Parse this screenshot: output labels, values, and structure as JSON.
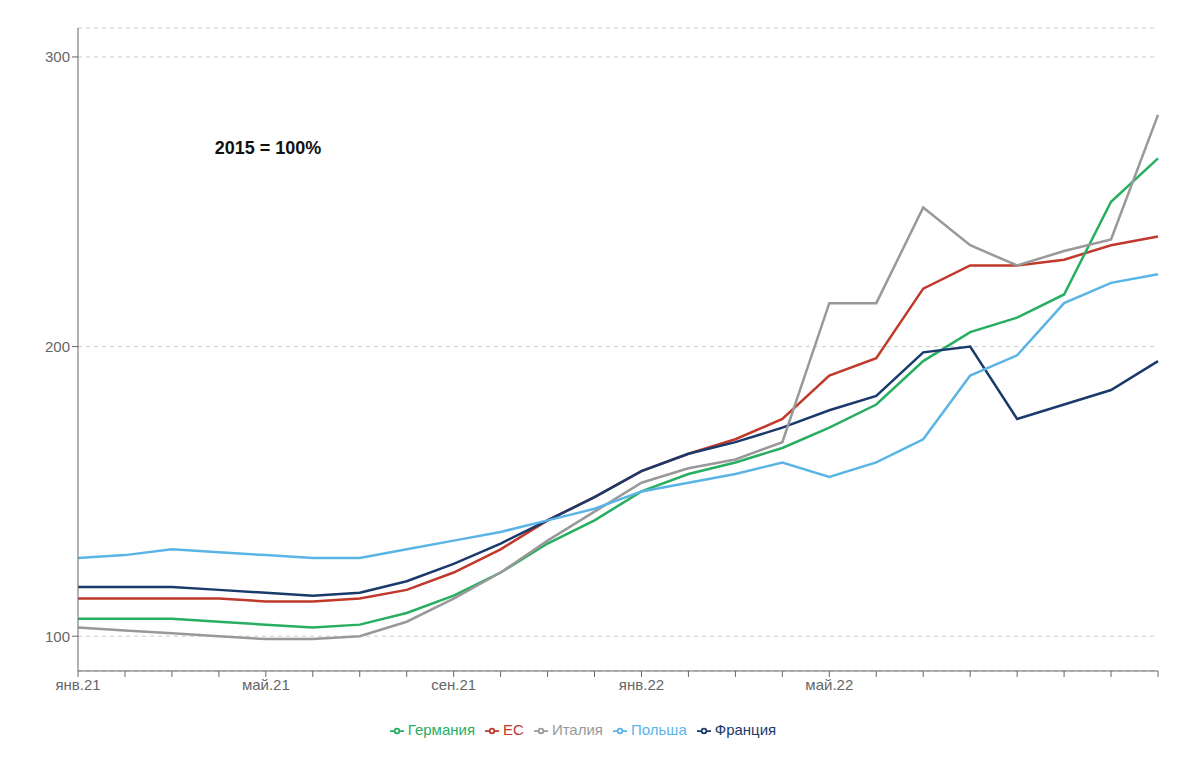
{
  "chart_data": {
    "type": "line",
    "annotations": [
      "2015 = 100%"
    ],
    "categories": [
      "янв.21",
      null,
      null,
      null,
      "май.21",
      null,
      null,
      null,
      "сен.21",
      null,
      null,
      null,
      "янв.22",
      null,
      null,
      null,
      "май.22",
      null,
      null,
      null,
      null,
      null,
      null,
      null
    ],
    "series": [
      {
        "name": "ЕС",
        "color": "#c0392b",
        "values": [
          113,
          113,
          113,
          113,
          112,
          112,
          113,
          116,
          122,
          130,
          140,
          148,
          157,
          163,
          168,
          175,
          190,
          196,
          220,
          228,
          228,
          230,
          235,
          238
        ]
      },
      {
        "name": "Германия",
        "color": "#27ae60",
        "values": [
          106,
          106,
          106,
          105,
          104,
          103,
          104,
          108,
          114,
          122,
          132,
          140,
          150,
          156,
          160,
          165,
          172,
          180,
          195,
          205,
          210,
          218,
          250,
          265
        ]
      },
      {
        "name": "Франция",
        "color": "#1a3a6b",
        "values": [
          117,
          117,
          117,
          116,
          115,
          114,
          115,
          119,
          125,
          132,
          140,
          148,
          157,
          163,
          167,
          172,
          178,
          183,
          198,
          200,
          175,
          180,
          185,
          195
        ]
      },
      {
        "name": "Италия",
        "color": "#999999",
        "values": [
          103,
          102,
          101,
          100,
          99,
          99,
          100,
          105,
          113,
          122,
          133,
          143,
          153,
          158,
          161,
          167,
          215,
          215,
          248,
          235,
          228,
          233,
          237,
          280
        ]
      },
      {
        "name": "Польша",
        "color": "#5ab4e5",
        "values": [
          127,
          128,
          130,
          129,
          128,
          127,
          127,
          130,
          133,
          136,
          140,
          144,
          150,
          153,
          156,
          160,
          155,
          160,
          168,
          190,
          197,
          215,
          222,
          225
        ]
      }
    ],
    "ylim": [
      88,
      310
    ],
    "yticks": [
      100,
      200,
      300
    ],
    "grid": true,
    "legend": "bottom"
  }
}
